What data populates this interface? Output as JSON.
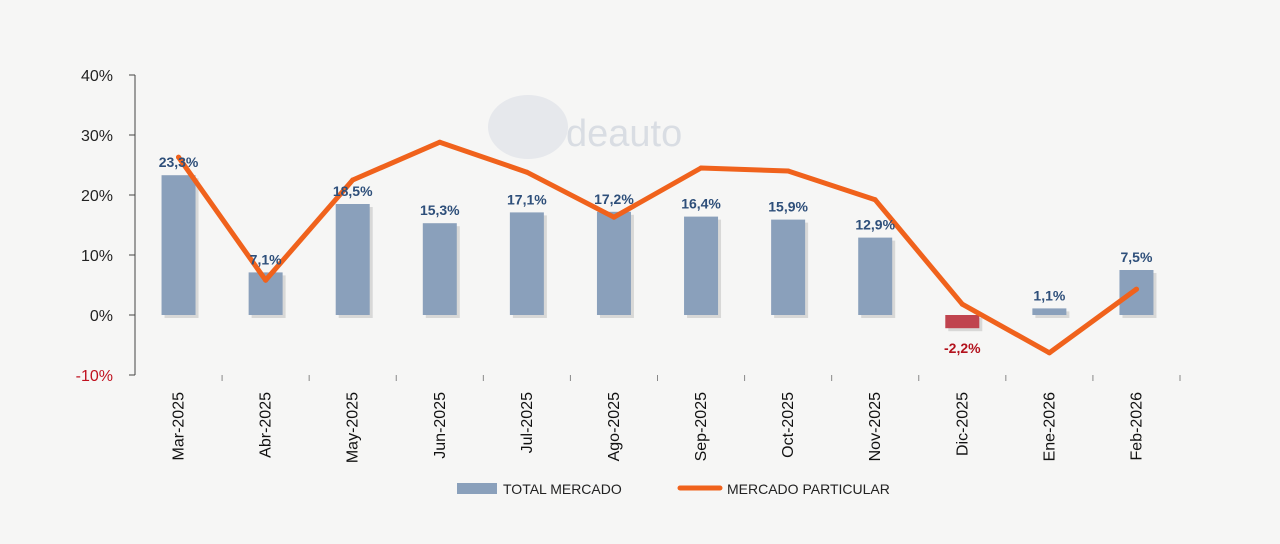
{
  "chart_data": {
    "type": "bar",
    "title": "",
    "xlabel": "",
    "ylabel": "",
    "ylim": [
      -10,
      40
    ],
    "yticks": [
      "-10%",
      "0%",
      "10%",
      "20%",
      "30%",
      "40%"
    ],
    "ytick_values": [
      -10,
      0,
      10,
      20,
      30,
      40
    ],
    "categories": [
      "Mar-2025",
      "Abr-2025",
      "May-2025",
      "Jun-2025",
      "Jul-2025",
      "Ago-2025",
      "Sep-2025",
      "Oct-2025",
      "Nov-2025",
      "Dic-2025",
      "Ene-2026",
      "Feb-2026"
    ],
    "series": [
      {
        "name": "TOTAL MERCADO",
        "kind": "bar",
        "color": "#8aa0bb",
        "negative_color": "#c0444f",
        "values": [
          23.3,
          7.1,
          18.5,
          15.3,
          17.1,
          17.2,
          16.4,
          15.9,
          12.9,
          -2.2,
          1.1,
          7.5
        ],
        "labels": [
          "23,3%",
          "7,1%",
          "18,5%",
          "15,3%",
          "17,1%",
          "17,2%",
          "16,4%",
          "15,9%",
          "12,9%",
          "-2,2%",
          "1,1%",
          "7,5%"
        ]
      },
      {
        "name": "MERCADO PARTICULAR",
        "kind": "line",
        "color": "#f0621c",
        "values": [
          26.3,
          5.8,
          22.5,
          28.8,
          23.8,
          16.3,
          24.5,
          24.0,
          19.2,
          1.8,
          -6.3,
          4.3
        ]
      }
    ],
    "legend_position": "bottom",
    "grid": false
  },
  "watermark": {
    "text": "deauto"
  }
}
